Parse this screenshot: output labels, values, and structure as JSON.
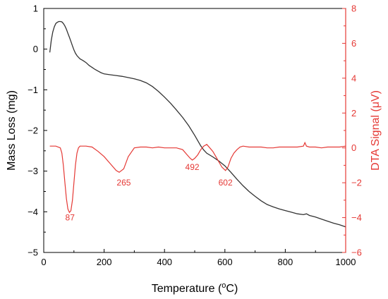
{
  "chart_data": {
    "type": "line",
    "title": "",
    "xlabel": "Temperature (",
    "xlabel_sup": "o",
    "xlabel_tail": "C)",
    "ylabel_left": "Mass Loss (mg)",
    "ylabel_right": "DTA Signal (μV)",
    "xlim": [
      0,
      1000
    ],
    "ylim_left": [
      -5,
      1
    ],
    "ylim_right": [
      -6,
      8
    ],
    "x_ticks": [
      0,
      200,
      400,
      600,
      800,
      1000
    ],
    "y_left_ticks": [
      1,
      0,
      -1,
      -2,
      -3,
      -4,
      -5
    ],
    "y_left_tick_labels": [
      "1",
      "0",
      "−1",
      "−2",
      "−3",
      "−4",
      "−5"
    ],
    "y_right_ticks": [
      8,
      6,
      4,
      2,
      0,
      -2,
      -4,
      -6
    ],
    "y_right_tick_labels": [
      "8",
      "6",
      "4",
      "2",
      "0",
      "−2",
      "−4",
      "−6"
    ],
    "grid": false,
    "colors": {
      "mass": "#333333",
      "dta": "#e53935",
      "right_axis": "#e53935",
      "left_axis": "#000000"
    },
    "series": [
      {
        "axis": "left",
        "x": [
          20,
          25,
          30,
          35,
          40,
          45,
          50,
          55,
          60,
          65,
          70,
          75,
          80,
          85,
          90,
          95,
          100,
          105,
          110,
          115,
          120,
          130,
          140,
          150,
          160,
          170,
          180,
          190,
          200,
          220,
          240,
          260,
          280,
          300,
          320,
          340,
          360,
          380,
          400,
          420,
          440,
          460,
          480,
          500,
          510,
          520,
          530,
          540,
          560,
          580,
          600,
          620,
          640,
          660,
          680,
          700,
          720,
          740,
          760,
          780,
          800,
          820,
          840,
          860,
          870,
          880,
          900,
          920,
          940,
          960,
          980,
          1000
        ],
        "values": [
          -0.08,
          0.22,
          0.42,
          0.55,
          0.63,
          0.66,
          0.68,
          0.68,
          0.67,
          0.63,
          0.57,
          0.49,
          0.39,
          0.29,
          0.19,
          0.08,
          -0.02,
          -0.1,
          -0.16,
          -0.2,
          -0.24,
          -0.28,
          -0.33,
          -0.4,
          -0.45,
          -0.5,
          -0.54,
          -0.58,
          -0.61,
          -0.63,
          -0.65,
          -0.67,
          -0.7,
          -0.73,
          -0.77,
          -0.83,
          -0.92,
          -1.04,
          -1.18,
          -1.33,
          -1.5,
          -1.68,
          -1.88,
          -2.12,
          -2.25,
          -2.38,
          -2.48,
          -2.56,
          -2.65,
          -2.75,
          -2.87,
          -3.03,
          -3.2,
          -3.36,
          -3.5,
          -3.62,
          -3.73,
          -3.82,
          -3.88,
          -3.93,
          -3.97,
          -4.01,
          -4.05,
          -4.07,
          -4.05,
          -4.09,
          -4.13,
          -4.18,
          -4.23,
          -4.28,
          -4.32,
          -4.37
        ]
      },
      {
        "axis": "right",
        "x": [
          20,
          40,
          55,
          60,
          65,
          70,
          75,
          80,
          85,
          90,
          95,
          100,
          105,
          110,
          115,
          120,
          130,
          140,
          160,
          180,
          200,
          220,
          240,
          250,
          265,
          280,
          300,
          320,
          340,
          360,
          380,
          400,
          420,
          440,
          460,
          475,
          485,
          492,
          500,
          510,
          520,
          530,
          540,
          550,
          560,
          570,
          580,
          590,
          602,
          610,
          620,
          630,
          640,
          650,
          660,
          680,
          700,
          720,
          740,
          760,
          780,
          800,
          820,
          840,
          860,
          865,
          870,
          880,
          900,
          920,
          940,
          960,
          980,
          1000
        ],
        "values": [
          0.1,
          0.1,
          0.0,
          -0.3,
          -1.0,
          -2.0,
          -2.9,
          -3.5,
          -3.7,
          -3.6,
          -3.0,
          -2.0,
          -1.0,
          -0.3,
          0.0,
          0.1,
          0.1,
          0.1,
          0.05,
          -0.2,
          -0.5,
          -0.9,
          -1.3,
          -1.4,
          -1.2,
          -0.5,
          0.0,
          0.05,
          0.05,
          0.0,
          0.05,
          0.0,
          0.0,
          0.0,
          -0.1,
          -0.4,
          -0.6,
          -0.7,
          -0.6,
          -0.4,
          -0.1,
          0.1,
          0.2,
          0.0,
          -0.2,
          -0.5,
          -0.8,
          -1.1,
          -1.3,
          -1.1,
          -0.6,
          -0.3,
          -0.1,
          0.05,
          0.1,
          0.05,
          0.05,
          0.05,
          0.0,
          0.0,
          0.05,
          0.05,
          0.05,
          0.05,
          0.1,
          0.3,
          0.1,
          0.05,
          0.05,
          0.0,
          0.05,
          0.05,
          0.05,
          0.1
        ]
      }
    ],
    "annotations": [
      {
        "text": "87",
        "x": 87,
        "y": -4.0
      },
      {
        "text": "265",
        "x": 265,
        "y": -2.0
      },
      {
        "text": "492",
        "x": 492,
        "y": -1.1
      },
      {
        "text": "602",
        "x": 602,
        "y": -2.0
      }
    ]
  }
}
